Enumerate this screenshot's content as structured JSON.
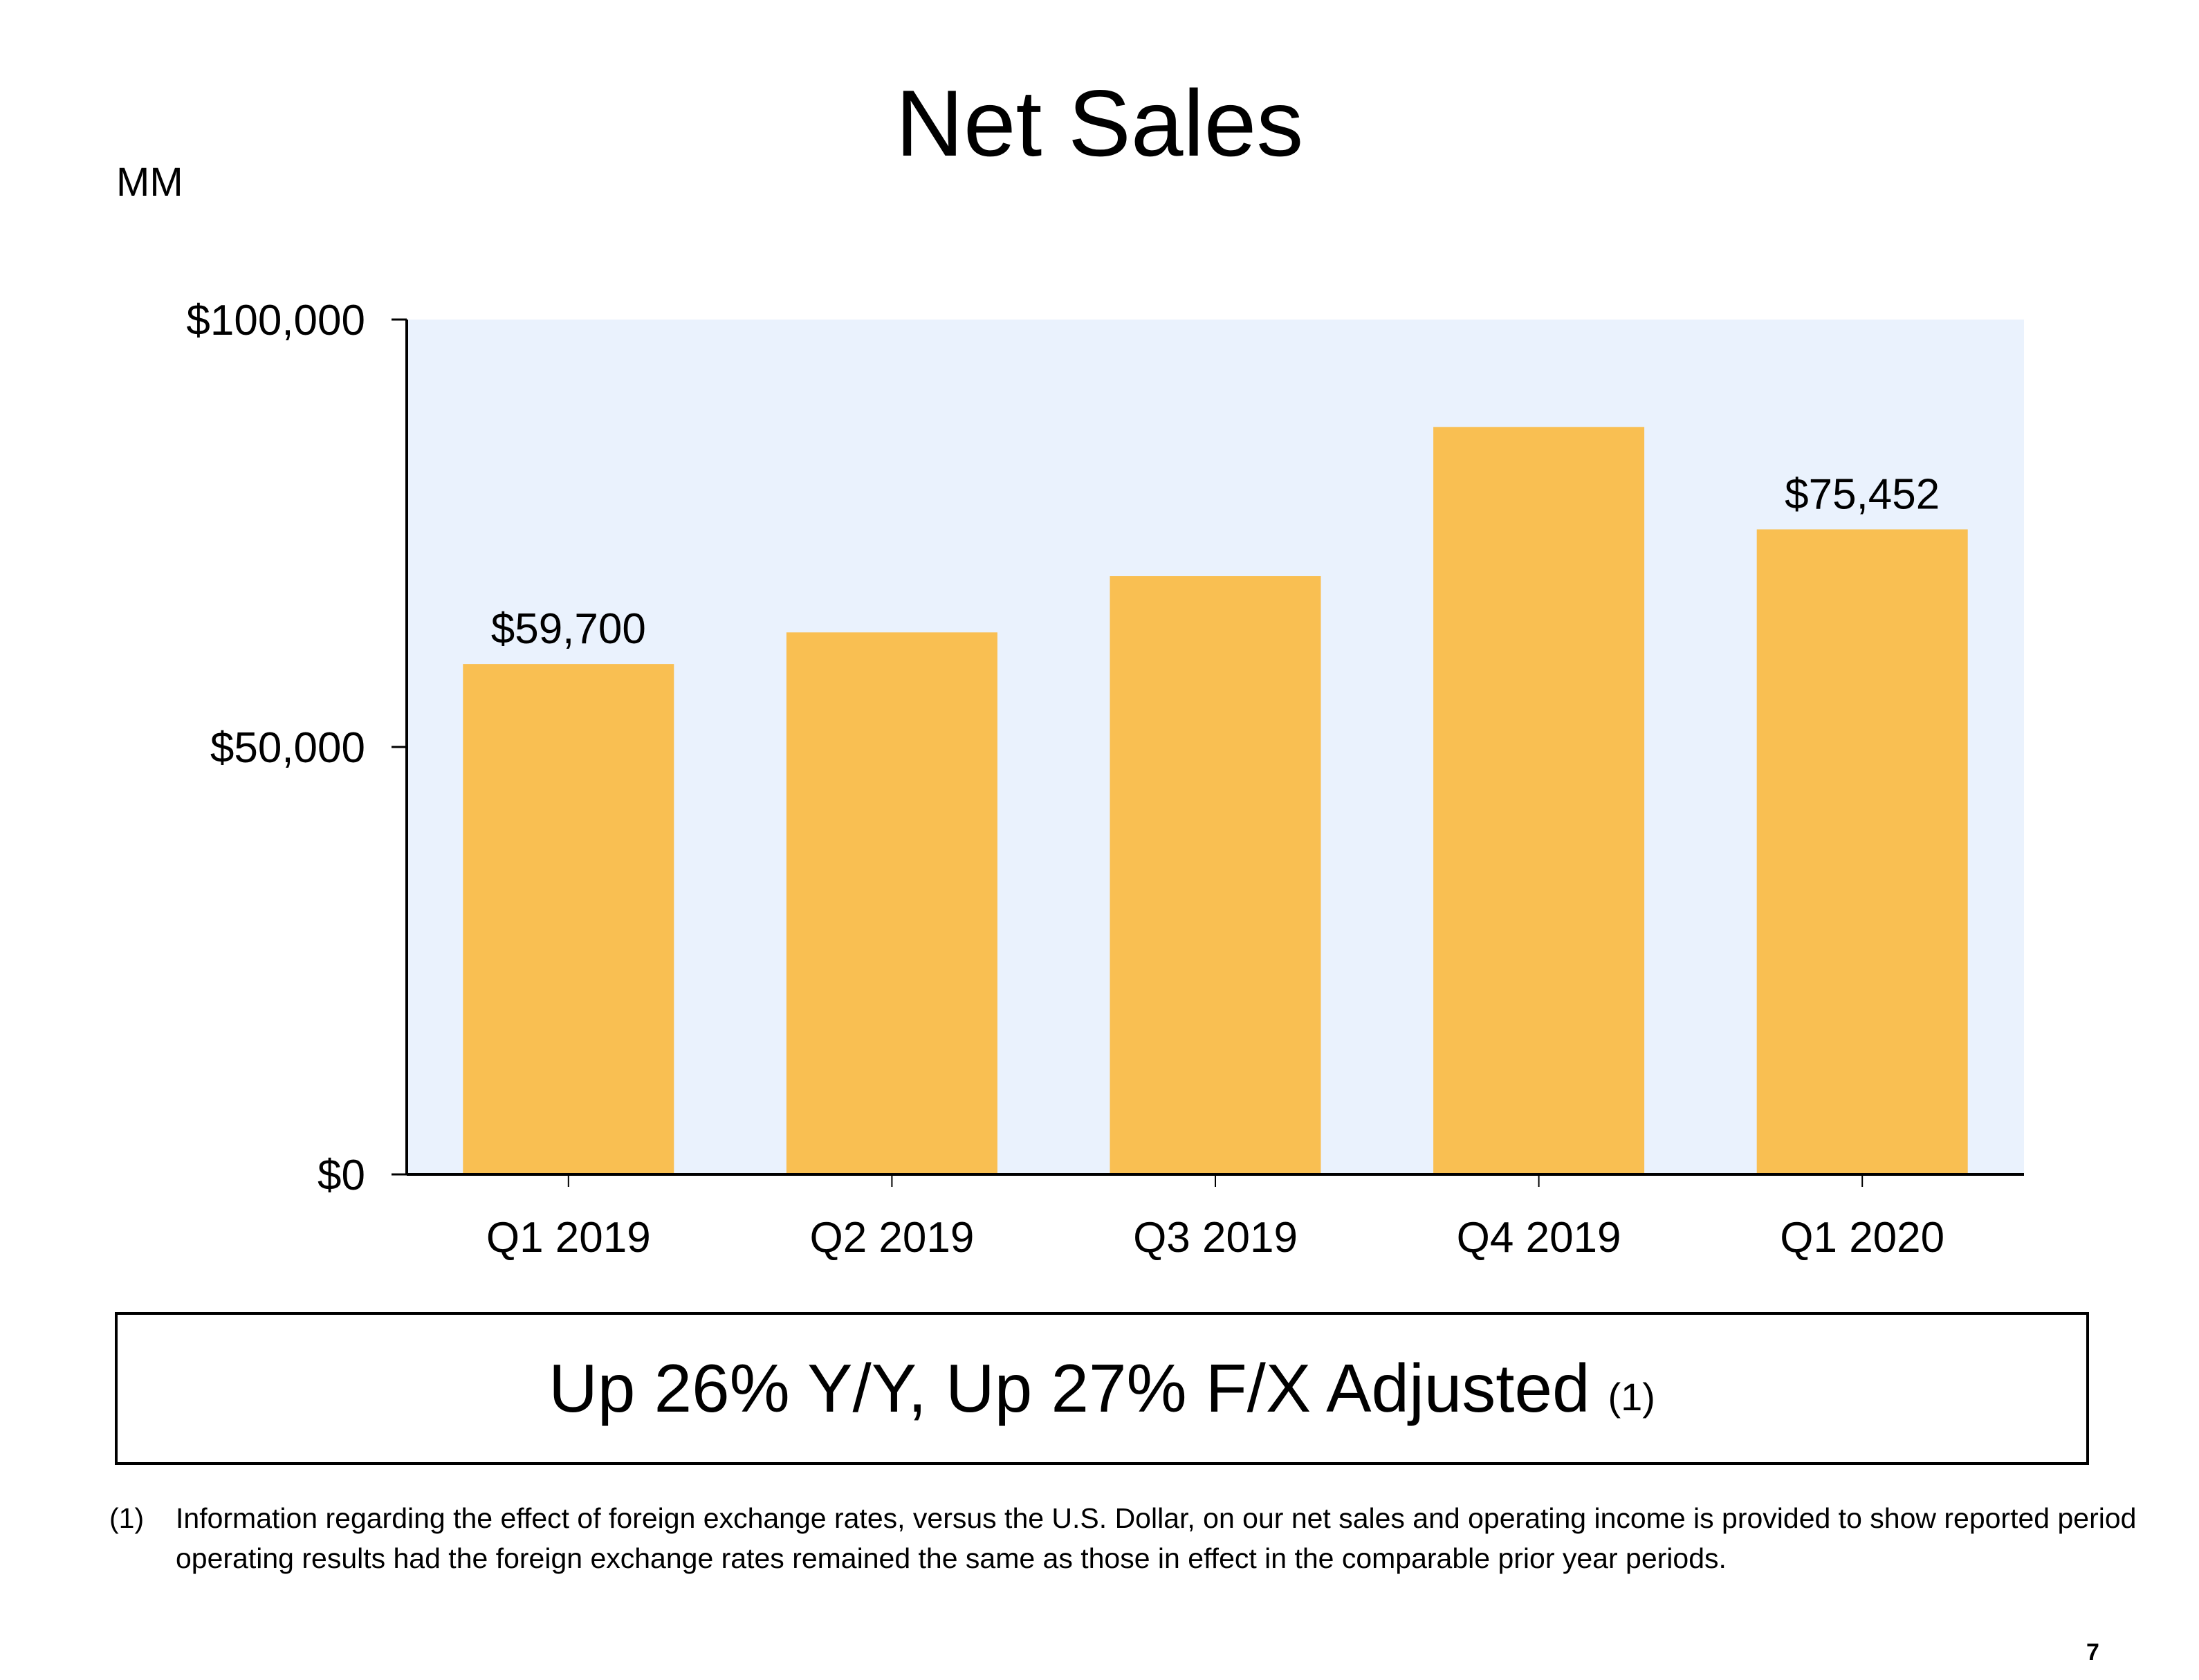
{
  "units_label": "MM",
  "chart_data": {
    "type": "bar",
    "title": "Net Sales",
    "categories": [
      "Q1 2019",
      "Q2 2019",
      "Q3 2019",
      "Q4 2019",
      "Q1 2020"
    ],
    "values": [
      59700,
      63404,
      69981,
      87437,
      75452
    ],
    "data_labels": [
      "$59,700",
      "",
      "",
      "",
      "$75,452"
    ],
    "y_ticks": [
      0,
      50000,
      100000
    ],
    "y_tick_labels": [
      "$0",
      "$50,000",
      "$100,000"
    ],
    "ylim": [
      0,
      100000
    ],
    "xlabel": "",
    "ylabel": "",
    "grid": false,
    "colors": {
      "bar": "#f9bf52",
      "plot_bg": "#eaf2fd",
      "axis": "#000000"
    }
  },
  "callout": {
    "text": "Up 26% Y/Y, Up 27% F/X Adjusted",
    "footnote_ref": "(1)"
  },
  "footnote": {
    "number": "(1)",
    "text": "Information regarding the effect of foreign exchange rates, versus the U.S. Dollar, on our net sales and operating income is provided to show reported period operating results had the foreign exchange rates remained the same as those in effect in the comparable prior year periods."
  },
  "page_number": "7"
}
